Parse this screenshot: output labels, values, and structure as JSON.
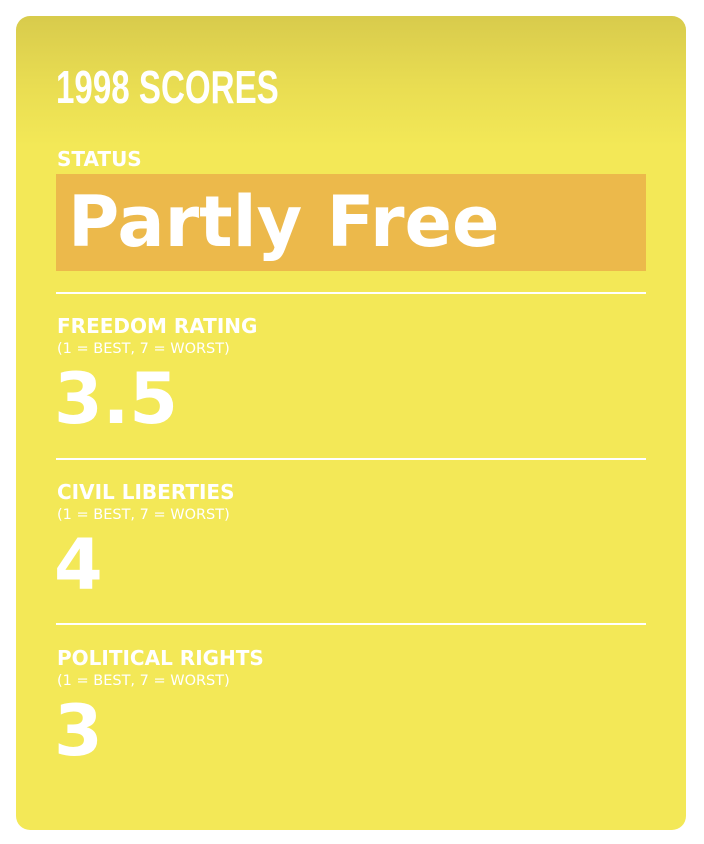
{
  "title": "1998 SCORES",
  "status": {
    "label": "STATUS",
    "value": "Partly Free",
    "color": "#ecb94b"
  },
  "metrics": [
    {
      "label": "FREEDOM RATING",
      "scale": "(1 = BEST, 7 = WORST)",
      "value": "3.5"
    },
    {
      "label": "CIVIL LIBERTIES",
      "scale": "(1 = BEST, 7 = WORST)",
      "value": "4"
    },
    {
      "label": "POLITICAL RIGHTS",
      "scale": "(1 = BEST, 7 = WORST)",
      "value": "3"
    }
  ],
  "colors": {
    "card": "#f3e857",
    "text": "#ffffff"
  }
}
